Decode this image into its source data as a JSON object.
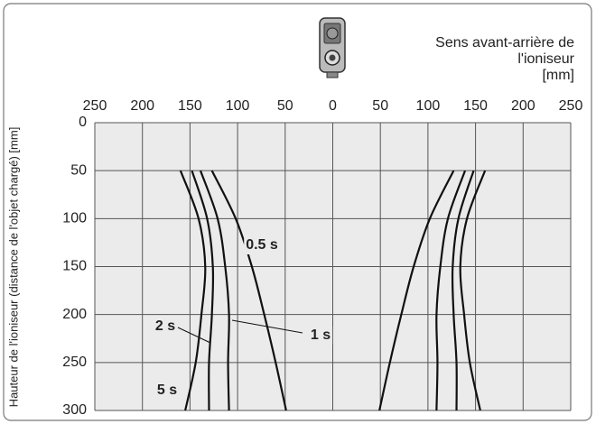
{
  "chart_data": {
    "type": "line",
    "x_label": [
      "Sens avant-arrière de",
      "l'ioniseur",
      "[mm]"
    ],
    "y_label": "Hauteur de l'ioniseur (distance de l'objet chargé) [mm]",
    "xlim": [
      -250,
      250
    ],
    "xticks": [
      {
        "value": -250,
        "label": "250"
      },
      {
        "value": -200,
        "label": "200"
      },
      {
        "value": -150,
        "label": "150"
      },
      {
        "value": -100,
        "label": "100"
      },
      {
        "value": -50,
        "label": "50"
      },
      0,
      50,
      100,
      150,
      200,
      250
    ],
    "ylim": [
      300,
      0
    ],
    "yticks": [
      0,
      50,
      100,
      150,
      200,
      250,
      300
    ],
    "grid": true,
    "series": [
      {
        "name": "0.5 s",
        "color": "#111111",
        "x": [
          -127,
          -102,
          -85,
          -72,
          -60,
          -49,
          null,
          127,
          102,
          85,
          72,
          60,
          49
        ],
        "values": [
          50,
          100,
          150,
          200,
          250,
          300,
          null,
          50,
          100,
          150,
          200,
          250,
          300
        ]
      },
      {
        "name": "1 s",
        "color": "#111111",
        "x": [
          -139,
          -121,
          -113,
          -109,
          -110,
          -109,
          null,
          139,
          121,
          113,
          109,
          110,
          109
        ],
        "values": [
          50,
          100,
          150,
          200,
          250,
          300,
          null,
          50,
          100,
          150,
          200,
          250,
          300
        ]
      },
      {
        "name": "2 s",
        "color": "#111111",
        "x": [
          -148,
          -132,
          -126,
          -127,
          -130,
          -130,
          null,
          148,
          132,
          126,
          127,
          130,
          130
        ],
        "values": [
          50,
          100,
          150,
          200,
          250,
          300,
          null,
          50,
          100,
          150,
          200,
          250,
          300
        ]
      },
      {
        "name": "5 s",
        "color": "#111111",
        "x": [
          -160,
          -141,
          -134,
          -138,
          -144,
          -155,
          null,
          160,
          141,
          134,
          138,
          144,
          155
        ],
        "values": [
          50,
          100,
          150,
          200,
          250,
          300,
          null,
          50,
          100,
          150,
          200,
          250,
          300
        ]
      }
    ]
  }
}
